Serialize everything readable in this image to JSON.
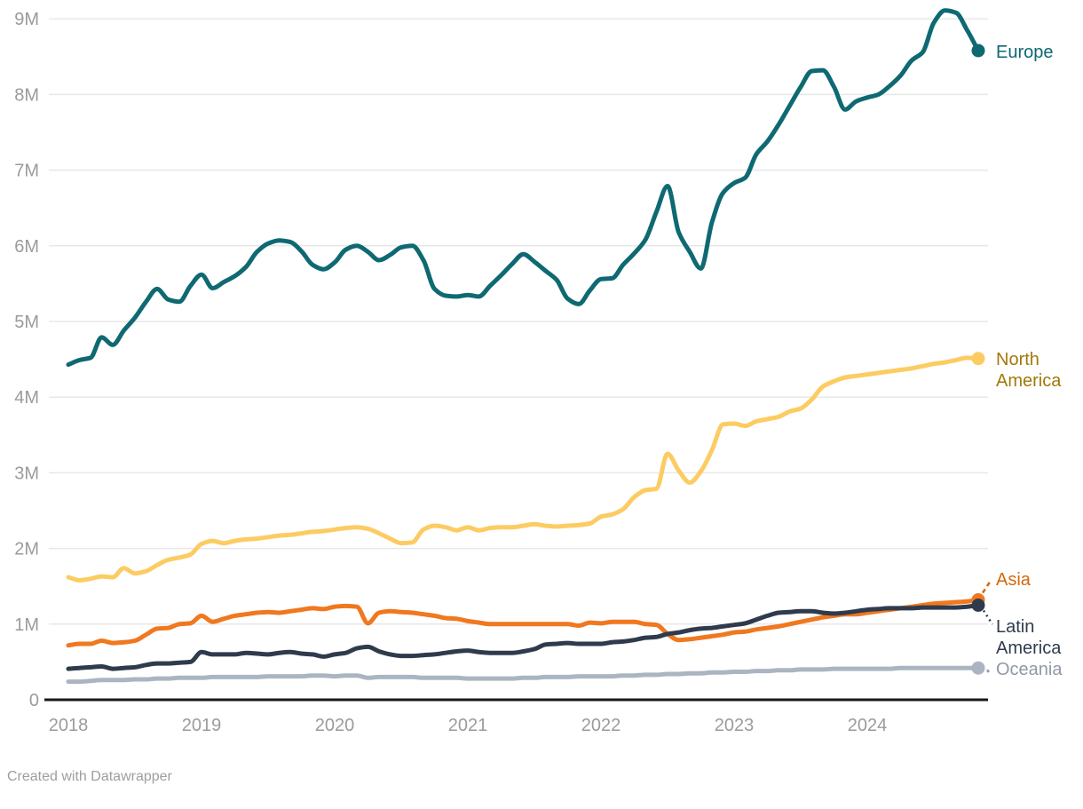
{
  "chart_data": {
    "type": "line",
    "title": "",
    "x_start": "2018-01",
    "x_end": "2024-11",
    "frequency": "monthly",
    "unit": "millions",
    "x_tick_labels": [
      "2018",
      "2019",
      "2020",
      "2021",
      "2022",
      "2023",
      "2024"
    ],
    "y_ticks": [
      0,
      1,
      2,
      3,
      4,
      5,
      6,
      7,
      8,
      9
    ],
    "y_tick_labels": [
      "0",
      "1M",
      "2M",
      "3M",
      "4M",
      "5M",
      "6M",
      "7M",
      "8M",
      "9M"
    ],
    "ylim": [
      0,
      9.3
    ],
    "grid": "horizontal",
    "legend_position": "direct-labels-right",
    "series": [
      {
        "name": "Europe",
        "color": "#0e6972",
        "label_color": "#0c6873",
        "label_lines": [
          "Europe"
        ],
        "values": [
          4.43,
          4.49,
          4.52,
          4.79,
          4.69,
          4.88,
          5.05,
          5.26,
          5.43,
          5.29,
          5.26,
          5.47,
          5.62,
          5.44,
          5.52,
          5.6,
          5.72,
          5.92,
          6.03,
          6.07,
          6.05,
          5.93,
          5.75,
          5.69,
          5.78,
          5.95,
          6.0,
          5.92,
          5.81,
          5.88,
          5.98,
          6.0,
          5.81,
          5.43,
          5.34,
          5.33,
          5.35,
          5.33,
          5.47,
          5.61,
          5.76,
          5.89,
          5.79,
          5.67,
          5.55,
          5.3,
          5.23,
          5.41,
          5.56,
          5.57,
          5.75,
          5.9,
          6.08,
          6.45,
          6.79,
          6.18,
          5.92,
          5.7,
          6.31,
          6.7,
          6.83,
          6.9,
          7.21,
          7.38,
          7.6,
          7.85,
          8.1,
          8.31,
          8.32,
          8.1,
          7.8,
          7.91,
          7.96,
          8.0,
          8.11,
          8.25,
          8.45,
          8.56,
          8.95,
          9.11,
          9.08,
          8.85,
          8.58
        ]
      },
      {
        "name": "North America",
        "color": "#fccc63",
        "label_color": "#a1790a",
        "label_lines": [
          "North",
          "America"
        ],
        "values": [
          1.62,
          1.58,
          1.6,
          1.63,
          1.62,
          1.74,
          1.67,
          1.7,
          1.78,
          1.85,
          1.88,
          1.92,
          2.06,
          2.1,
          2.07,
          2.1,
          2.12,
          2.13,
          2.15,
          2.17,
          2.18,
          2.2,
          2.22,
          2.23,
          2.25,
          2.27,
          2.28,
          2.26,
          2.2,
          2.13,
          2.07,
          2.08,
          2.25,
          2.3,
          2.28,
          2.24,
          2.28,
          2.24,
          2.27,
          2.28,
          2.28,
          2.3,
          2.32,
          2.3,
          2.29,
          2.3,
          2.31,
          2.33,
          2.42,
          2.45,
          2.52,
          2.68,
          2.77,
          2.79,
          3.25,
          3.03,
          2.87,
          3.02,
          3.3,
          3.64,
          3.65,
          3.62,
          3.68,
          3.71,
          3.74,
          3.81,
          3.85,
          3.97,
          4.14,
          4.21,
          4.26,
          4.28,
          4.3,
          4.32,
          4.34,
          4.36,
          4.38,
          4.41,
          4.44,
          4.46,
          4.49,
          4.52,
          4.51
        ]
      },
      {
        "name": "Asia",
        "color": "#f0781e",
        "label_color": "#d2690c",
        "label_lines": [
          "Asia"
        ],
        "values": [
          0.72,
          0.74,
          0.74,
          0.78,
          0.75,
          0.76,
          0.78,
          0.86,
          0.94,
          0.95,
          1.0,
          1.01,
          1.11,
          1.03,
          1.07,
          1.11,
          1.13,
          1.15,
          1.16,
          1.15,
          1.17,
          1.19,
          1.21,
          1.2,
          1.23,
          1.24,
          1.23,
          1.01,
          1.15,
          1.17,
          1.16,
          1.15,
          1.13,
          1.11,
          1.08,
          1.07,
          1.04,
          1.02,
          1.0,
          1.0,
          1.0,
          1.0,
          1.0,
          1.0,
          1.0,
          1.0,
          0.98,
          1.02,
          1.01,
          1.03,
          1.03,
          1.03,
          1.0,
          0.99,
          0.87,
          0.79,
          0.8,
          0.82,
          0.84,
          0.86,
          0.89,
          0.9,
          0.93,
          0.95,
          0.97,
          1.0,
          1.03,
          1.06,
          1.09,
          1.11,
          1.13,
          1.13,
          1.15,
          1.17,
          1.19,
          1.21,
          1.23,
          1.25,
          1.27,
          1.28,
          1.29,
          1.3,
          1.32
        ]
      },
      {
        "name": "Latin America",
        "color": "#2f3b4d",
        "label_color": "#2f3b4d",
        "label_lines": [
          "Latin",
          "America"
        ],
        "values": [
          0.41,
          0.42,
          0.43,
          0.44,
          0.41,
          0.42,
          0.43,
          0.46,
          0.48,
          0.48,
          0.49,
          0.5,
          0.63,
          0.6,
          0.6,
          0.6,
          0.62,
          0.61,
          0.6,
          0.62,
          0.63,
          0.61,
          0.6,
          0.57,
          0.6,
          0.62,
          0.68,
          0.7,
          0.64,
          0.6,
          0.58,
          0.58,
          0.59,
          0.6,
          0.62,
          0.64,
          0.65,
          0.63,
          0.62,
          0.62,
          0.62,
          0.64,
          0.67,
          0.73,
          0.74,
          0.75,
          0.74,
          0.74,
          0.74,
          0.76,
          0.77,
          0.79,
          0.82,
          0.83,
          0.87,
          0.89,
          0.92,
          0.94,
          0.95,
          0.97,
          0.99,
          1.01,
          1.06,
          1.11,
          1.15,
          1.16,
          1.17,
          1.17,
          1.15,
          1.14,
          1.15,
          1.17,
          1.19,
          1.2,
          1.21,
          1.21,
          1.21,
          1.22,
          1.22,
          1.22,
          1.22,
          1.23,
          1.25
        ]
      },
      {
        "name": "Oceania",
        "color": "#abb5c2",
        "label_color": "#8f99a6",
        "label_lines": [
          "Oceania"
        ],
        "values": [
          0.24,
          0.24,
          0.25,
          0.26,
          0.26,
          0.26,
          0.27,
          0.27,
          0.28,
          0.28,
          0.29,
          0.29,
          0.29,
          0.3,
          0.3,
          0.3,
          0.3,
          0.3,
          0.31,
          0.31,
          0.31,
          0.31,
          0.32,
          0.32,
          0.31,
          0.32,
          0.32,
          0.29,
          0.3,
          0.3,
          0.3,
          0.3,
          0.29,
          0.29,
          0.29,
          0.29,
          0.28,
          0.28,
          0.28,
          0.28,
          0.28,
          0.29,
          0.29,
          0.3,
          0.3,
          0.3,
          0.31,
          0.31,
          0.31,
          0.31,
          0.32,
          0.32,
          0.33,
          0.33,
          0.34,
          0.34,
          0.35,
          0.35,
          0.36,
          0.36,
          0.37,
          0.37,
          0.38,
          0.38,
          0.39,
          0.39,
          0.4,
          0.4,
          0.4,
          0.41,
          0.41,
          0.41,
          0.41,
          0.41,
          0.41,
          0.42,
          0.42,
          0.42,
          0.42,
          0.42,
          0.42,
          0.42,
          0.42
        ]
      }
    ]
  },
  "colors": {
    "grid_line": "#e8e8e8",
    "zero_axis": "#191919",
    "tick_text": "#9b9b9b"
  },
  "footer": {
    "credit": "Created with Datawrapper"
  }
}
